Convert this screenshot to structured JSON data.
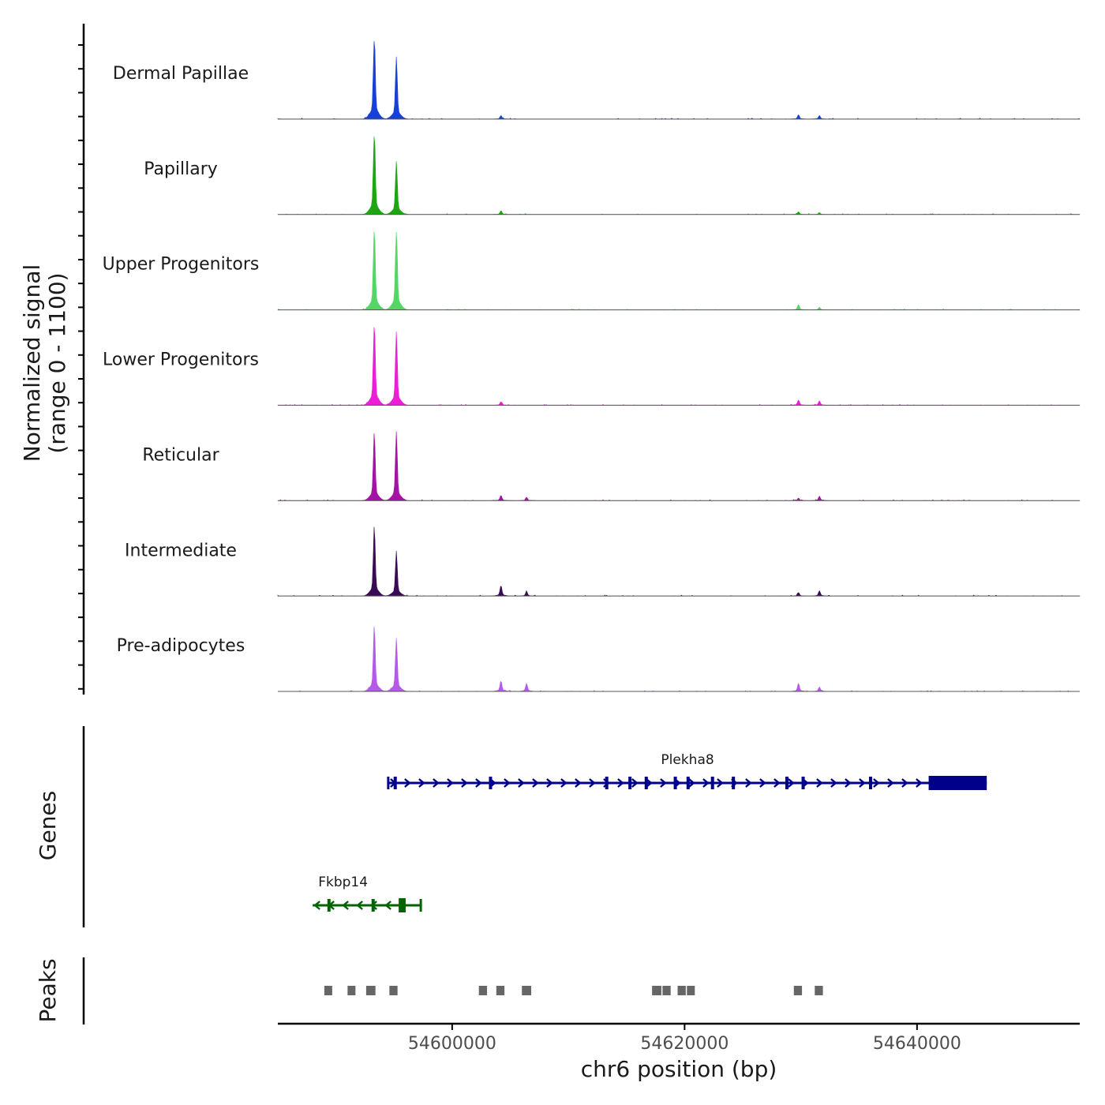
{
  "chart_data": {
    "type": "genome_track",
    "chromosome": "chr6",
    "x_range": [
      54585000,
      54654000
    ],
    "y_range": [
      0,
      1100
    ],
    "y_axis_title_lines": [
      "Normalized signal",
      "(range 0 - 1100)"
    ],
    "x_axis_title": "chr6 position (bp)",
    "x_ticks": [
      {
        "value": 54600000,
        "label": "54600000"
      },
      {
        "value": 54620000,
        "label": "54620000"
      },
      {
        "value": 54640000,
        "label": "54640000"
      }
    ],
    "tracks": [
      {
        "name": "Dermal Papillae",
        "color": "#1740d6",
        "peaks": [
          {
            "pos": 54593300,
            "h": 0.98
          },
          {
            "pos": 54595200,
            "h": 0.7
          },
          {
            "pos": 54604200,
            "h": 0.04
          },
          {
            "pos": 54629800,
            "h": 0.05
          },
          {
            "pos": 54631600,
            "h": 0.04
          }
        ]
      },
      {
        "name": "Papillary",
        "color": "#1ea612",
        "peaks": [
          {
            "pos": 54593300,
            "h": 0.98
          },
          {
            "pos": 54595200,
            "h": 0.6
          },
          {
            "pos": 54604200,
            "h": 0.04
          },
          {
            "pos": 54629800,
            "h": 0.03
          },
          {
            "pos": 54631600,
            "h": 0.02
          }
        ]
      },
      {
        "name": "Upper Progenitors",
        "color": "#56d567",
        "peaks": [
          {
            "pos": 54593300,
            "h": 0.98
          },
          {
            "pos": 54595200,
            "h": 0.96
          },
          {
            "pos": 54629800,
            "h": 0.06
          },
          {
            "pos": 54631600,
            "h": 0.03
          }
        ]
      },
      {
        "name": "Lower Progenitors",
        "color": "#ea1fd6",
        "peaks": [
          {
            "pos": 54593300,
            "h": 0.98
          },
          {
            "pos": 54595200,
            "h": 0.83
          },
          {
            "pos": 54604200,
            "h": 0.04
          },
          {
            "pos": 54629800,
            "h": 0.06
          },
          {
            "pos": 54631600,
            "h": 0.05
          }
        ]
      },
      {
        "name": "Reticular",
        "color": "#a413a4",
        "peaks": [
          {
            "pos": 54593300,
            "h": 0.78
          },
          {
            "pos": 54595200,
            "h": 0.78
          },
          {
            "pos": 54604200,
            "h": 0.06
          },
          {
            "pos": 54606400,
            "h": 0.04
          },
          {
            "pos": 54629800,
            "h": 0.03
          },
          {
            "pos": 54631600,
            "h": 0.05
          }
        ]
      },
      {
        "name": "Intermediate",
        "color": "#3a0b55",
        "peaks": [
          {
            "pos": 54593300,
            "h": 0.8
          },
          {
            "pos": 54595200,
            "h": 0.5
          },
          {
            "pos": 54604200,
            "h": 0.12
          },
          {
            "pos": 54606400,
            "h": 0.05
          },
          {
            "pos": 54629800,
            "h": 0.04
          },
          {
            "pos": 54631600,
            "h": 0.06
          }
        ]
      },
      {
        "name": "Pre-adipocytes",
        "color": "#b45ae8",
        "peaks": [
          {
            "pos": 54593300,
            "h": 0.75
          },
          {
            "pos": 54595200,
            "h": 0.6
          },
          {
            "pos": 54604200,
            "h": 0.12
          },
          {
            "pos": 54606400,
            "h": 0.09
          },
          {
            "pos": 54629800,
            "h": 0.09
          },
          {
            "pos": 54631600,
            "h": 0.05
          }
        ]
      }
    ],
    "genes_title": "Genes",
    "genes": [
      {
        "name": "Plekha8",
        "strand": "+",
        "start": 54594500,
        "end": 54646000,
        "color": "#00008b",
        "exons": [
          54595100,
          54603300,
          54613300,
          54615300,
          54616700,
          54619200,
          54620300,
          54622400,
          54624200,
          54628800,
          54630200,
          54636000
        ],
        "utr_block": [
          54641000,
          54646000
        ]
      },
      {
        "name": "Fkbp14",
        "strand": "-",
        "start": 54588000,
        "end": 54597300,
        "color": "#006400",
        "exons": [
          54589400,
          54593200
        ],
        "utr_block": [
          54595400,
          54596000
        ]
      }
    ],
    "peaks_title": "Peaks",
    "peak_regions": [
      [
        54589000,
        54589600
      ],
      [
        54591000,
        54591600
      ],
      [
        54592600,
        54593400
      ],
      [
        54594600,
        54595300
      ],
      [
        54602300,
        54603000
      ],
      [
        54603800,
        54604500
      ],
      [
        54606000,
        54606800
      ],
      [
        54617200,
        54618000
      ],
      [
        54618100,
        54618800
      ],
      [
        54619400,
        54620100
      ],
      [
        54620200,
        54620800
      ],
      [
        54629400,
        54630100
      ],
      [
        54631200,
        54631900
      ]
    ],
    "peaks_color": "#666666"
  }
}
